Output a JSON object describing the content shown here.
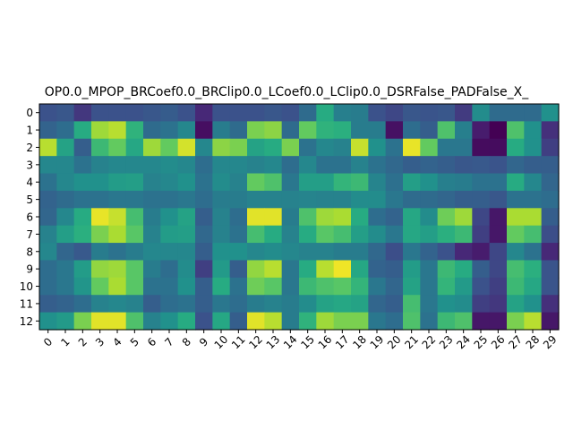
{
  "chart_data": {
    "type": "heatmap",
    "title": "OP0.0_MPOP_BRCoef0.0_BRClip0.0_LCoef0.0_LClip0.0_DSRFalse_PADFalse_X_",
    "x_ticks": [
      "0",
      "1",
      "2",
      "3",
      "4",
      "5",
      "6",
      "7",
      "8",
      "9",
      "10",
      "11",
      "12",
      "13",
      "14",
      "15",
      "16",
      "17",
      "18",
      "19",
      "20",
      "21",
      "22",
      "23",
      "24",
      "25",
      "26",
      "27",
      "28",
      "29"
    ],
    "y_ticks": [
      "0",
      "1",
      "2",
      "3",
      "4",
      "5",
      "6",
      "7",
      "8",
      "9",
      "10",
      "11",
      "12"
    ],
    "colormap": "viridis",
    "vrange": [
      0,
      1
    ],
    "values": [
      [
        0.25,
        0.27,
        0.18,
        0.25,
        0.25,
        0.25,
        0.27,
        0.29,
        0.25,
        0.14,
        0.25,
        0.25,
        0.25,
        0.27,
        0.25,
        0.35,
        0.62,
        0.43,
        0.42,
        0.25,
        0.22,
        0.27,
        0.26,
        0.27,
        0.19,
        0.48,
        0.35,
        0.35,
        0.35,
        0.5
      ],
      [
        0.32,
        0.36,
        0.62,
        0.86,
        0.9,
        0.65,
        0.35,
        0.38,
        0.46,
        0.05,
        0.42,
        0.35,
        0.8,
        0.83,
        0.35,
        0.76,
        0.65,
        0.64,
        0.42,
        0.42,
        0.06,
        0.36,
        0.3,
        0.72,
        0.43,
        0.1,
        0.0,
        0.72,
        0.5,
        0.16
      ],
      [
        0.9,
        0.58,
        0.3,
        0.68,
        0.76,
        0.6,
        0.86,
        0.76,
        0.94,
        0.46,
        0.83,
        0.8,
        0.58,
        0.62,
        0.8,
        0.38,
        0.46,
        0.44,
        0.92,
        0.5,
        0.38,
        0.97,
        0.76,
        0.4,
        0.4,
        0.04,
        0.04,
        0.62,
        0.5,
        0.2
      ],
      [
        0.46,
        0.46,
        0.38,
        0.44,
        0.46,
        0.46,
        0.46,
        0.48,
        0.46,
        0.36,
        0.46,
        0.46,
        0.44,
        0.46,
        0.36,
        0.46,
        0.38,
        0.38,
        0.44,
        0.38,
        0.34,
        0.3,
        0.32,
        0.3,
        0.27,
        0.28,
        0.26,
        0.33,
        0.3,
        0.3
      ],
      [
        0.38,
        0.46,
        0.5,
        0.5,
        0.55,
        0.56,
        0.44,
        0.46,
        0.5,
        0.38,
        0.48,
        0.44,
        0.76,
        0.72,
        0.4,
        0.56,
        0.56,
        0.66,
        0.68,
        0.45,
        0.37,
        0.56,
        0.5,
        0.43,
        0.42,
        0.38,
        0.38,
        0.62,
        0.46,
        0.33
      ],
      [
        0.32,
        0.35,
        0.38,
        0.38,
        0.4,
        0.4,
        0.38,
        0.38,
        0.4,
        0.36,
        0.42,
        0.42,
        0.44,
        0.44,
        0.44,
        0.45,
        0.44,
        0.44,
        0.48,
        0.48,
        0.4,
        0.35,
        0.35,
        0.33,
        0.3,
        0.3,
        0.27,
        0.38,
        0.38,
        0.36
      ],
      [
        0.33,
        0.46,
        0.62,
        0.97,
        0.92,
        0.7,
        0.42,
        0.5,
        0.58,
        0.3,
        0.44,
        0.36,
        0.96,
        0.96,
        0.42,
        0.72,
        0.86,
        0.88,
        0.62,
        0.36,
        0.32,
        0.6,
        0.48,
        0.78,
        0.86,
        0.22,
        0.08,
        0.88,
        0.88,
        0.3
      ],
      [
        0.44,
        0.56,
        0.64,
        0.8,
        0.88,
        0.74,
        0.44,
        0.55,
        0.56,
        0.34,
        0.44,
        0.38,
        0.7,
        0.62,
        0.44,
        0.62,
        0.74,
        0.7,
        0.56,
        0.48,
        0.4,
        0.6,
        0.56,
        0.64,
        0.68,
        0.2,
        0.08,
        0.76,
        0.7,
        0.24
      ],
      [
        0.46,
        0.33,
        0.28,
        0.42,
        0.38,
        0.42,
        0.46,
        0.46,
        0.46,
        0.3,
        0.5,
        0.5,
        0.46,
        0.48,
        0.46,
        0.44,
        0.44,
        0.42,
        0.42,
        0.34,
        0.24,
        0.4,
        0.32,
        0.25,
        0.14,
        0.1,
        0.22,
        0.46,
        0.38,
        0.14
      ],
      [
        0.36,
        0.4,
        0.55,
        0.84,
        0.86,
        0.74,
        0.42,
        0.36,
        0.48,
        0.2,
        0.54,
        0.3,
        0.84,
        0.9,
        0.4,
        0.62,
        0.9,
        0.98,
        0.6,
        0.32,
        0.3,
        0.55,
        0.4,
        0.68,
        0.62,
        0.3,
        0.22,
        0.7,
        0.64,
        0.26
      ],
      [
        0.36,
        0.4,
        0.52,
        0.76,
        0.88,
        0.74,
        0.38,
        0.38,
        0.5,
        0.3,
        0.62,
        0.38,
        0.78,
        0.74,
        0.4,
        0.68,
        0.72,
        0.74,
        0.66,
        0.4,
        0.33,
        0.58,
        0.4,
        0.66,
        0.54,
        0.25,
        0.2,
        0.68,
        0.6,
        0.26
      ],
      [
        0.3,
        0.32,
        0.36,
        0.44,
        0.46,
        0.44,
        0.3,
        0.36,
        0.38,
        0.3,
        0.4,
        0.36,
        0.42,
        0.44,
        0.42,
        0.48,
        0.58,
        0.6,
        0.58,
        0.33,
        0.3,
        0.7,
        0.4,
        0.5,
        0.48,
        0.2,
        0.18,
        0.58,
        0.5,
        0.16
      ],
      [
        0.5,
        0.54,
        0.8,
        0.96,
        0.96,
        0.72,
        0.44,
        0.5,
        0.62,
        0.25,
        0.6,
        0.3,
        0.96,
        0.9,
        0.42,
        0.65,
        0.86,
        0.8,
        0.8,
        0.4,
        0.36,
        0.72,
        0.38,
        0.68,
        0.72,
        0.08,
        0.08,
        0.8,
        0.9,
        0.08
      ]
    ]
  }
}
